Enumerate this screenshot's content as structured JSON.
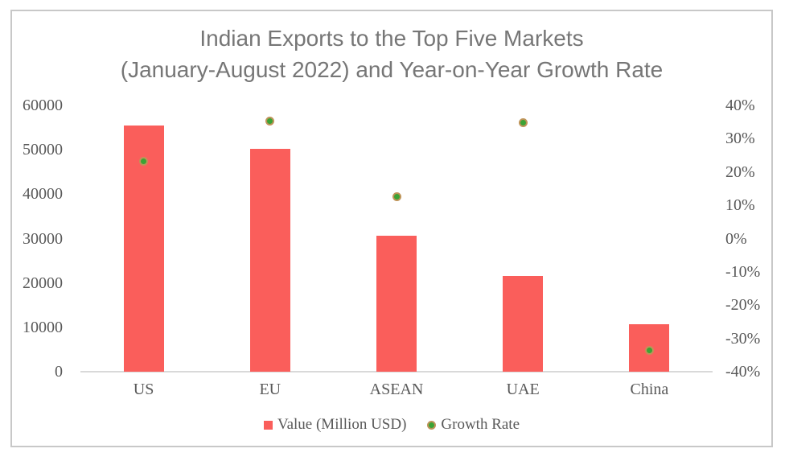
{
  "title": {
    "lines": [
      "Indian Exports to the Top Five Markets",
      "(January-August 2022) and Year-on-Year Growth Rate"
    ],
    "full": "Indian Exports to the Top Five Markets (January-August 2022) and Year-on-Year Growth Rate"
  },
  "chart_data": {
    "type": "bar",
    "subtype": "combo-bar-and-scatter",
    "title": "Indian Exports to the Top Five Markets (January-August 2022) and Year-on-Year Growth Rate",
    "categories": [
      "US",
      "EU",
      "ASEAN",
      "UAE",
      "China"
    ],
    "series": [
      {
        "name": "Value (Million USD)",
        "mark": "bar",
        "axis": "left",
        "color": "#FA5E5B",
        "values": [
          55500,
          50300,
          30600,
          21500,
          10700
        ]
      },
      {
        "name": "Growth Rate",
        "mark": "scatter",
        "axis": "right",
        "color": "#3BA335",
        "marker_outline": "#BE9459",
        "unit": "%",
        "values": [
          23.3,
          35.3,
          12.5,
          34.7,
          -33.5
        ]
      }
    ],
    "left_axis": {
      "min": 0,
      "max": 60000,
      "step": 10000
    },
    "right_axis": {
      "min": -40,
      "max": 40,
      "step": 10,
      "format": "percent"
    },
    "grid": false,
    "legend_position": "bottom",
    "xlabel": "",
    "ylabel_left": "",
    "ylabel_right": ""
  },
  "axes_ticks": {
    "left": [
      "0",
      "10000",
      "20000",
      "30000",
      "40000",
      "50000",
      "60000"
    ],
    "right": [
      "-40%",
      "-30%",
      "-20%",
      "-10%",
      "0%",
      "10%",
      "20%",
      "30%",
      "40%"
    ]
  },
  "legend": {
    "items": [
      {
        "label": "Value (Million USD)",
        "marker": "square",
        "color": "#FA5E5B"
      },
      {
        "label": "Growth Rate",
        "marker": "circle",
        "color": "#3BA335",
        "outline": "#BE9459"
      }
    ]
  },
  "colors": {
    "bar": "#FA5E5B",
    "marker_fill": "#3BA335",
    "marker_ring": "#BE9459",
    "title_text": "#767676",
    "axis_text": "#595959",
    "axis_line": "#D9D9D9",
    "frame_border": "#C8C8C8",
    "background": "#FFFFFF"
  }
}
